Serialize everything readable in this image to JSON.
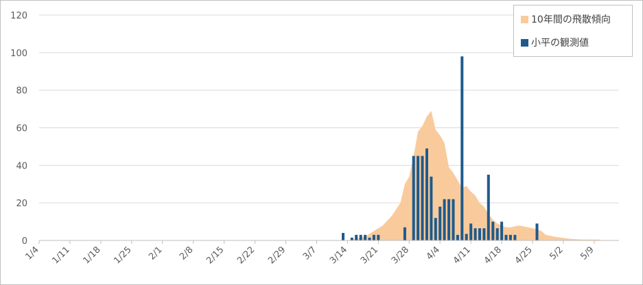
{
  "chart_data": {
    "type": "bar",
    "ylim": [
      0,
      120
    ],
    "yticks": [
      0,
      20,
      40,
      60,
      80,
      100,
      120
    ],
    "x_tick_labels": [
      "1/4",
      "1/11",
      "1/18",
      "1/25",
      "2/1",
      "2/8",
      "2/15",
      "2/22",
      "2/29",
      "3/7",
      "3/14",
      "3/21",
      "3/28",
      "4/4",
      "4/11",
      "4/18",
      "4/25",
      "5/2",
      "5/9"
    ],
    "grid": true,
    "legend_position": "top-right",
    "colors": {
      "trend": "#f9cb9c",
      "observed": "#1f5a8c",
      "grid": "#d9d9d9",
      "axis": "#bfbfbf"
    },
    "series": [
      {
        "name": "10年間の飛散傾向",
        "kind": "area",
        "points": [
          [
            "3/14",
            0
          ],
          [
            "3/16",
            1
          ],
          [
            "3/18",
            2
          ],
          [
            "3/20",
            5
          ],
          [
            "3/22",
            8
          ],
          [
            "3/24",
            13
          ],
          [
            "3/26",
            20
          ],
          [
            "3/27",
            30
          ],
          [
            "3/28",
            34
          ],
          [
            "3/29",
            45
          ],
          [
            "3/30",
            58
          ],
          [
            "3/31",
            61
          ],
          [
            "4/1",
            66
          ],
          [
            "4/2",
            69
          ],
          [
            "4/3",
            59
          ],
          [
            "4/4",
            56
          ],
          [
            "4/5",
            52
          ],
          [
            "4/6",
            39
          ],
          [
            "4/7",
            36
          ],
          [
            "4/8",
            32
          ],
          [
            "4/9",
            28
          ],
          [
            "4/10",
            29
          ],
          [
            "4/11",
            26
          ],
          [
            "4/12",
            24
          ],
          [
            "4/13",
            20
          ],
          [
            "4/14",
            18
          ],
          [
            "4/15",
            14
          ],
          [
            "4/16",
            11
          ],
          [
            "4/17",
            9
          ],
          [
            "4/18",
            8
          ],
          [
            "4/19",
            7
          ],
          [
            "4/20",
            7
          ],
          [
            "4/22",
            8
          ],
          [
            "4/24",
            7
          ],
          [
            "4/26",
            6
          ],
          [
            "4/27",
            5
          ],
          [
            "4/28",
            3
          ],
          [
            "4/30",
            2
          ],
          [
            "5/3",
            1
          ],
          [
            "5/6",
            0.5
          ],
          [
            "5/10",
            0.5
          ],
          [
            "5/11",
            0
          ]
        ]
      },
      {
        "name": "小平の観測値",
        "kind": "bar",
        "points": [
          [
            "3/13",
            4
          ],
          [
            "3/15",
            1.5
          ],
          [
            "3/16",
            3
          ],
          [
            "3/17",
            3
          ],
          [
            "3/18",
            3
          ],
          [
            "3/19",
            1.5
          ],
          [
            "3/20",
            3
          ],
          [
            "3/21",
            3
          ],
          [
            "3/27",
            7
          ],
          [
            "3/29",
            45
          ],
          [
            "3/30",
            45
          ],
          [
            "3/31",
            45
          ],
          [
            "4/1",
            49
          ],
          [
            "4/2",
            34
          ],
          [
            "4/3",
            12
          ],
          [
            "4/4",
            18
          ],
          [
            "4/5",
            22
          ],
          [
            "4/6",
            22
          ],
          [
            "4/7",
            22
          ],
          [
            "4/8",
            3
          ],
          [
            "4/9",
            98
          ],
          [
            "4/10",
            3.5
          ],
          [
            "4/11",
            9
          ],
          [
            "4/12",
            6.5
          ],
          [
            "4/13",
            6.5
          ],
          [
            "4/14",
            6.5
          ],
          [
            "4/15",
            35
          ],
          [
            "4/16",
            10
          ],
          [
            "4/17",
            6.5
          ],
          [
            "4/18",
            10
          ],
          [
            "4/19",
            3
          ],
          [
            "4/20",
            3
          ],
          [
            "4/21",
            3
          ],
          [
            "4/26",
            9
          ]
        ]
      }
    ]
  }
}
